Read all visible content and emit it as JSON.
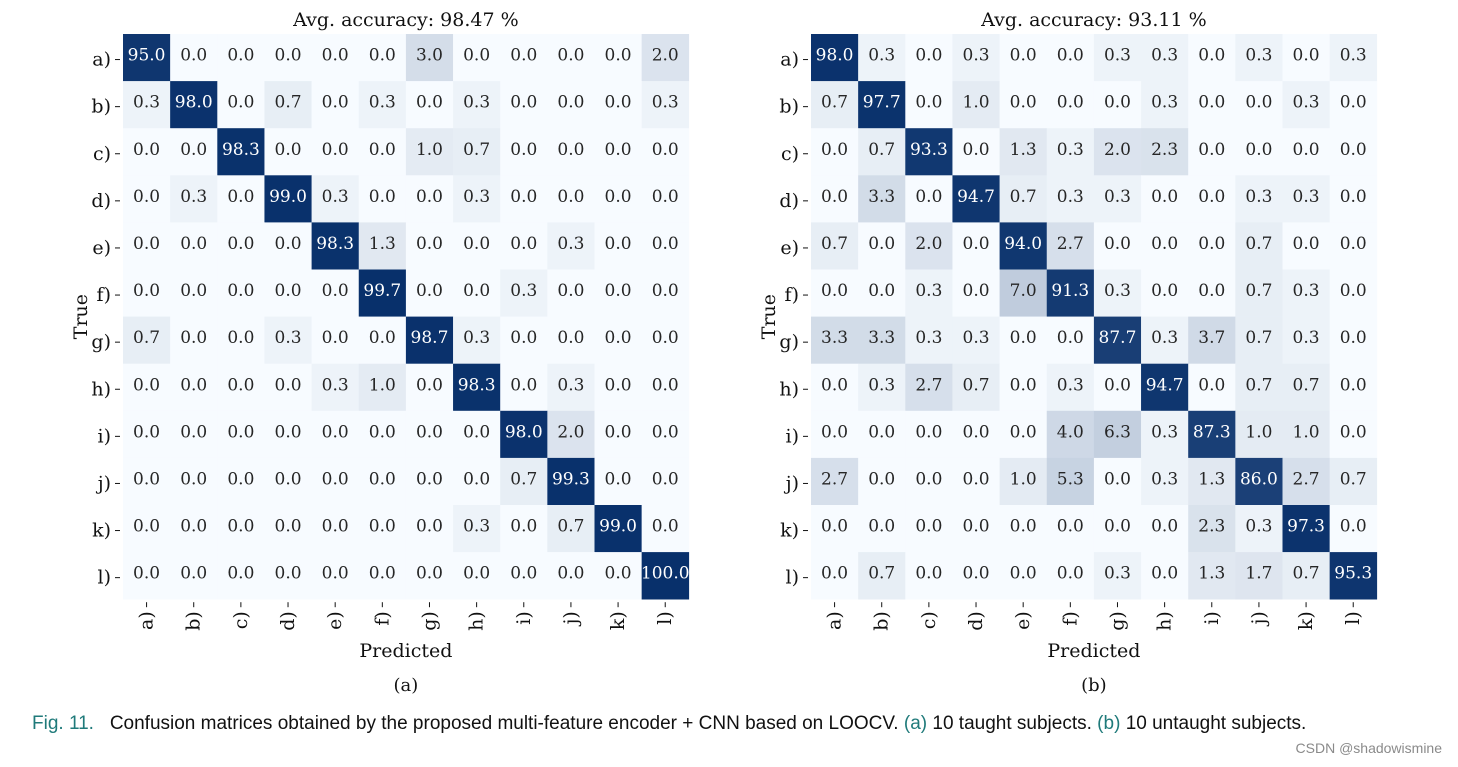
{
  "chart_data": [
    {
      "type": "heatmap",
      "title": "Avg. accuracy: 98.47 %",
      "xlabel": "Predicted",
      "ylabel": "True",
      "sublabel": "(a)",
      "labels": [
        "a)",
        "b)",
        "c)",
        "d)",
        "e)",
        "f)",
        "g)",
        "h)",
        "i)",
        "j)",
        "k)",
        "l)"
      ],
      "value_range": [
        0,
        100
      ],
      "colormap": "Blues",
      "matrix": [
        [
          95.0,
          0.0,
          0.0,
          0.0,
          0.0,
          0.0,
          3.0,
          0.0,
          0.0,
          0.0,
          0.0,
          2.0
        ],
        [
          0.3,
          98.0,
          0.0,
          0.7,
          0.0,
          0.3,
          0.0,
          0.3,
          0.0,
          0.0,
          0.0,
          0.3
        ],
        [
          0.0,
          0.0,
          98.3,
          0.0,
          0.0,
          0.0,
          1.0,
          0.7,
          0.0,
          0.0,
          0.0,
          0.0
        ],
        [
          0.0,
          0.3,
          0.0,
          99.0,
          0.3,
          0.0,
          0.0,
          0.3,
          0.0,
          0.0,
          0.0,
          0.0
        ],
        [
          0.0,
          0.0,
          0.0,
          0.0,
          98.3,
          1.3,
          0.0,
          0.0,
          0.0,
          0.3,
          0.0,
          0.0
        ],
        [
          0.0,
          0.0,
          0.0,
          0.0,
          0.0,
          99.7,
          0.0,
          0.0,
          0.3,
          0.0,
          0.0,
          0.0
        ],
        [
          0.7,
          0.0,
          0.0,
          0.3,
          0.0,
          0.0,
          98.7,
          0.3,
          0.0,
          0.0,
          0.0,
          0.0
        ],
        [
          0.0,
          0.0,
          0.0,
          0.0,
          0.3,
          1.0,
          0.0,
          98.3,
          0.0,
          0.3,
          0.0,
          0.0
        ],
        [
          0.0,
          0.0,
          0.0,
          0.0,
          0.0,
          0.0,
          0.0,
          0.0,
          98.0,
          2.0,
          0.0,
          0.0
        ],
        [
          0.0,
          0.0,
          0.0,
          0.0,
          0.0,
          0.0,
          0.0,
          0.0,
          0.7,
          99.3,
          0.0,
          0.0
        ],
        [
          0.0,
          0.0,
          0.0,
          0.0,
          0.0,
          0.0,
          0.0,
          0.3,
          0.0,
          0.7,
          99.0,
          0.0
        ],
        [
          0.0,
          0.0,
          0.0,
          0.0,
          0.0,
          0.0,
          0.0,
          0.0,
          0.0,
          0.0,
          0.0,
          100.0
        ]
      ]
    },
    {
      "type": "heatmap",
      "title": "Avg. accuracy: 93.11 %",
      "xlabel": "Predicted",
      "ylabel": "True",
      "sublabel": "(b)",
      "labels": [
        "a)",
        "b)",
        "c)",
        "d)",
        "e)",
        "f)",
        "g)",
        "h)",
        "i)",
        "j)",
        "k)",
        "l)"
      ],
      "value_range": [
        0,
        100
      ],
      "colormap": "Blues",
      "matrix": [
        [
          98.0,
          0.3,
          0.0,
          0.3,
          0.0,
          0.0,
          0.3,
          0.3,
          0.0,
          0.3,
          0.0,
          0.3
        ],
        [
          0.7,
          97.7,
          0.0,
          1.0,
          0.0,
          0.0,
          0.0,
          0.3,
          0.0,
          0.0,
          0.3,
          0.0
        ],
        [
          0.0,
          0.7,
          93.3,
          0.0,
          1.3,
          0.3,
          2.0,
          2.3,
          0.0,
          0.0,
          0.0,
          0.0
        ],
        [
          0.0,
          3.3,
          0.0,
          94.7,
          0.7,
          0.3,
          0.3,
          0.0,
          0.0,
          0.3,
          0.3,
          0.0
        ],
        [
          0.7,
          0.0,
          2.0,
          0.0,
          94.0,
          2.7,
          0.0,
          0.0,
          0.0,
          0.7,
          0.0,
          0.0
        ],
        [
          0.0,
          0.0,
          0.3,
          0.0,
          7.0,
          91.3,
          0.3,
          0.0,
          0.0,
          0.7,
          0.3,
          0.0
        ],
        [
          3.3,
          3.3,
          0.3,
          0.3,
          0.0,
          0.0,
          87.7,
          0.3,
          3.7,
          0.7,
          0.3,
          0.0
        ],
        [
          0.0,
          0.3,
          2.7,
          0.7,
          0.0,
          0.3,
          0.0,
          94.7,
          0.0,
          0.7,
          0.7,
          0.0
        ],
        [
          0.0,
          0.0,
          0.0,
          0.0,
          0.0,
          4.0,
          6.3,
          0.3,
          87.3,
          1.0,
          1.0,
          0.0
        ],
        [
          2.7,
          0.0,
          0.0,
          0.0,
          1.0,
          5.3,
          0.0,
          0.3,
          1.3,
          86.0,
          2.7,
          0.7
        ],
        [
          0.0,
          0.0,
          0.0,
          0.0,
          0.0,
          0.0,
          0.0,
          0.0,
          2.3,
          0.3,
          97.3,
          0.0
        ],
        [
          0.0,
          0.7,
          0.0,
          0.0,
          0.0,
          0.0,
          0.3,
          0.0,
          1.3,
          1.7,
          0.7,
          95.3
        ]
      ]
    }
  ],
  "caption": {
    "fig_label": "Fig. 11.",
    "text_main": "Confusion matrices obtained by the proposed multi-feature encoder + CNN based on LOOCV.",
    "ref_a": "(a)",
    "text_a": "10 taught subjects.",
    "ref_b": "(b)",
    "text_b": "10 untaught subjects."
  },
  "watermark": "CSDN @shadowismine",
  "colors": {
    "teal_ref": "#1f7a7a",
    "heat_low": "#f7fbff",
    "heat_high": "#08306b"
  }
}
